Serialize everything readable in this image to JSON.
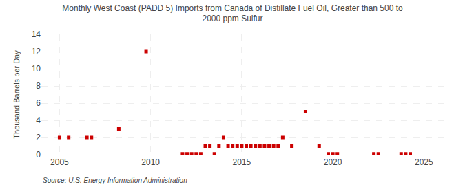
{
  "chart_data": {
    "type": "scatter",
    "title": "Monthly West Coast (PADD 5) Imports from Canada of Distillate Fuel Oil, Greater than 500 to\n2000 ppm Sulfur",
    "ylabel": "Thousand Barrels per Day",
    "annotations": [
      "Source: U.S. Energy Information Administration"
    ],
    "color": "#cc0000",
    "marker": "square",
    "grid": true,
    "xlim": [
      2004.0,
      2026.5
    ],
    "ylim": [
      0,
      14
    ],
    "xticks": [
      2005,
      2010,
      2015,
      2020,
      2025
    ],
    "yticks": [
      0,
      2,
      4,
      6,
      8,
      10,
      12,
      14
    ],
    "x": [
      2005.0,
      2005.5,
      2006.5,
      2006.75,
      2008.25,
      2009.75,
      2011.75,
      2012.0,
      2012.25,
      2012.5,
      2012.75,
      2013.0,
      2013.25,
      2013.5,
      2013.75,
      2014.0,
      2014.25,
      2014.5,
      2014.75,
      2015.0,
      2015.25,
      2015.5,
      2015.75,
      2016.0,
      2016.25,
      2016.5,
      2016.75,
      2017.0,
      2017.25,
      2017.75,
      2018.5,
      2019.25,
      2019.75,
      2020.0,
      2020.25,
      2022.25,
      2022.5,
      2023.75,
      2024.0,
      2024.25
    ],
    "values": [
      2.0,
      2.0,
      2.0,
      2.0,
      3.0,
      12.0,
      0.1,
      0.1,
      0.1,
      0.1,
      0.1,
      1.0,
      1.0,
      0.1,
      1.0,
      2.0,
      1.0,
      1.0,
      1.0,
      1.0,
      1.0,
      1.0,
      1.0,
      1.0,
      1.0,
      1.0,
      1.0,
      1.0,
      2.0,
      1.0,
      5.0,
      1.0,
      0.1,
      0.1,
      0.1,
      0.1,
      0.1,
      0.1,
      0.1,
      0.1
    ]
  }
}
